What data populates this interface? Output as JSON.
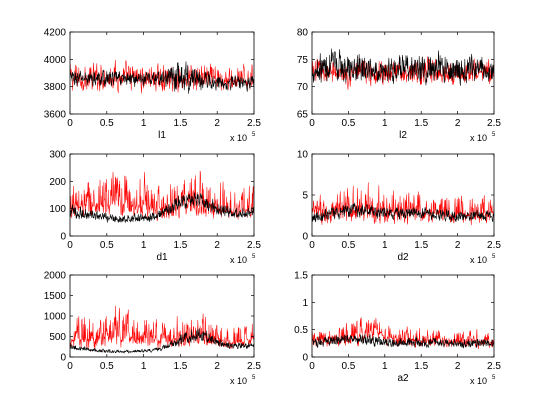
{
  "chart_data": [
    {
      "type": "line",
      "xlabel": "l1",
      "xscale_label": "x 10",
      "xscale_exp": "5",
      "xlim": [
        0,
        2.5
      ],
      "ylim": [
        3600,
        4200
      ],
      "xticks": [
        "0",
        "0.5",
        "1",
        "1.5",
        "2",
        "2.5"
      ],
      "yticks": [
        "3600",
        "3800",
        "4000",
        "4200"
      ],
      "grid": false,
      "series": [
        {
          "color": "#ff0000",
          "style": "trace",
          "x": [
            0,
            0.25,
            0.5,
            0.75,
            1.0,
            1.25,
            1.5,
            1.75,
            2.0,
            2.25,
            2.5
          ],
          "center": [
            3860,
            3850,
            3870,
            3860,
            3850,
            3850,
            3850,
            3860,
            3850,
            3840,
            3860
          ],
          "min": [
            3720,
            3730,
            3740,
            3730,
            3730,
            3740,
            3730,
            3720,
            3730,
            3740,
            3740
          ],
          "max": [
            4030,
            4000,
            4060,
            4030,
            4000,
            3990,
            4040,
            4020,
            4000,
            3990,
            4000
          ]
        },
        {
          "color": "#000000",
          "style": "trace",
          "x": [
            0,
            0.25,
            0.5,
            0.75,
            1.0,
            1.25,
            1.5,
            1.75,
            2.0,
            2.25,
            2.5
          ],
          "center": [
            3860,
            3860,
            3860,
            3860,
            3860,
            3860,
            3860,
            3860,
            3830,
            3830,
            3840
          ],
          "min": [
            3780,
            3780,
            3790,
            3790,
            3780,
            3790,
            3700,
            3750,
            3760,
            3760,
            3750
          ],
          "max": [
            3940,
            3940,
            3930,
            3930,
            3930,
            3930,
            4060,
            3960,
            3910,
            3900,
            3910
          ]
        }
      ]
    },
    {
      "type": "line",
      "xlabel": "l2",
      "xscale_label": "x 10",
      "xscale_exp": "5",
      "xlim": [
        0,
        2.5
      ],
      "ylim": [
        65,
        80
      ],
      "xticks": [
        "0",
        "0.5",
        "1",
        "1.5",
        "2",
        "2.5"
      ],
      "yticks": [
        "65",
        "70",
        "75",
        "80"
      ],
      "grid": false,
      "series": [
        {
          "color": "#ff0000",
          "style": "trace",
          "x": [
            0,
            0.25,
            0.5,
            0.75,
            1.0,
            1.25,
            1.5,
            1.75,
            2.0,
            2.25,
            2.5
          ],
          "center": [
            72.5,
            72.5,
            72.5,
            72.5,
            72.5,
            72.5,
            72.5,
            72.5,
            72.5,
            72.5,
            72.5
          ],
          "min": [
            70.0,
            70.0,
            69.0,
            69.5,
            69.5,
            70.0,
            69.5,
            70.0,
            70.0,
            70.0,
            70.0
          ],
          "max": [
            76.0,
            76.0,
            76.5,
            76.0,
            76.0,
            76.0,
            76.0,
            76.0,
            75.5,
            76.0,
            75.5
          ]
        },
        {
          "color": "#000000",
          "style": "trace",
          "x": [
            0,
            0.25,
            0.5,
            0.75,
            1.0,
            1.25,
            1.5,
            1.75,
            2.0,
            2.25,
            2.5
          ],
          "center": [
            73.0,
            73.5,
            73.0,
            73.0,
            73.0,
            73.0,
            73.0,
            73.0,
            73.0,
            73.0,
            73.0
          ],
          "min": [
            70.0,
            70.0,
            70.0,
            70.0,
            70.0,
            70.0,
            70.0,
            70.0,
            70.0,
            70.0,
            70.0
          ],
          "max": [
            77.0,
            78.0,
            77.0,
            76.5,
            77.0,
            76.5,
            77.0,
            77.0,
            76.5,
            76.5,
            76.0
          ]
        }
      ]
    },
    {
      "type": "line",
      "xlabel": "d1",
      "xscale_label": "x 10",
      "xscale_exp": "5",
      "xlim": [
        0,
        2.5
      ],
      "ylim": [
        0,
        300
      ],
      "xticks": [
        "0",
        "0.5",
        "1",
        "1.5",
        "2",
        "2.5"
      ],
      "yticks": [
        "0",
        "100",
        "200",
        "300"
      ],
      "grid": false,
      "series": [
        {
          "color": "#ff0000",
          "style": "trace",
          "x": [
            0,
            0.25,
            0.5,
            0.75,
            1.0,
            1.25,
            1.5,
            1.75,
            2.0,
            2.25,
            2.5
          ],
          "center": [
            100,
            110,
            115,
            120,
            110,
            100,
            120,
            110,
            100,
            90,
            100
          ],
          "min": [
            50,
            50,
            45,
            45,
            50,
            45,
            50,
            55,
            50,
            50,
            55
          ],
          "max": [
            230,
            260,
            290,
            280,
            260,
            220,
            240,
            280,
            240,
            200,
            220
          ]
        },
        {
          "color": "#000000",
          "style": "trace",
          "x": [
            0,
            0.25,
            0.5,
            0.75,
            1.0,
            1.25,
            1.5,
            1.75,
            2.0,
            2.25,
            2.5
          ],
          "center": [
            90,
            75,
            65,
            60,
            65,
            80,
            125,
            140,
            100,
            80,
            85
          ],
          "min": [
            60,
            50,
            45,
            45,
            45,
            55,
            85,
            95,
            70,
            60,
            65
          ],
          "max": [
            130,
            105,
            90,
            85,
            90,
            110,
            165,
            180,
            140,
            110,
            115
          ]
        }
      ]
    },
    {
      "type": "line",
      "xlabel": "d2",
      "xscale_label": "x 10",
      "xscale_exp": "5",
      "xlim": [
        0,
        2.5
      ],
      "ylim": [
        0,
        10
      ],
      "xticks": [
        "0",
        "0.5",
        "1",
        "1.5",
        "2",
        "2.5"
      ],
      "yticks": [
        "0",
        "5",
        "10"
      ],
      "grid": false,
      "series": [
        {
          "color": "#ff0000",
          "style": "trace",
          "x": [
            0,
            0.25,
            0.5,
            0.75,
            1.0,
            1.25,
            1.5,
            1.75,
            2.0,
            2.25,
            2.5
          ],
          "center": [
            2.8,
            2.9,
            3.2,
            3.3,
            3.0,
            2.9,
            2.9,
            2.8,
            2.7,
            2.6,
            2.6
          ],
          "min": [
            1.0,
            1.0,
            1.0,
            1.0,
            1.0,
            1.0,
            1.0,
            1.0,
            1.0,
            1.0,
            1.0
          ],
          "max": [
            5.5,
            6.0,
            7.0,
            8.0,
            6.5,
            6.0,
            6.5,
            6.5,
            6.0,
            5.5,
            5.5
          ]
        },
        {
          "color": "#000000",
          "style": "trace",
          "x": [
            0,
            0.25,
            0.5,
            0.75,
            1.0,
            1.25,
            1.5,
            1.75,
            2.0,
            2.25,
            2.5
          ],
          "center": [
            2.5,
            2.6,
            3.2,
            3.0,
            2.8,
            2.7,
            2.8,
            2.6,
            2.5,
            2.4,
            2.4
          ],
          "min": [
            1.5,
            1.6,
            2.0,
            2.0,
            1.8,
            1.7,
            1.8,
            1.6,
            1.6,
            1.6,
            1.6
          ],
          "max": [
            3.5,
            3.6,
            4.3,
            4.0,
            3.8,
            3.7,
            3.8,
            3.6,
            3.5,
            3.4,
            3.3
          ]
        }
      ]
    },
    {
      "type": "line",
      "xlabel": "",
      "xscale_label": "x 10",
      "xscale_exp": "5",
      "xlim": [
        0,
        2.5
      ],
      "ylim": [
        0,
        2000
      ],
      "xticks": [
        "0",
        "0.5",
        "1",
        "1.5",
        "2",
        "2.5"
      ],
      "yticks": [
        "0",
        "500",
        "1000",
        "1500",
        "2000"
      ],
      "grid": false,
      "series": [
        {
          "color": "#ff0000",
          "style": "trace",
          "x": [
            0,
            0.25,
            0.5,
            0.75,
            1.0,
            1.25,
            1.5,
            1.75,
            2.0,
            2.25,
            2.5
          ],
          "center": [
            420,
            450,
            500,
            520,
            470,
            420,
            470,
            500,
            420,
            380,
            420
          ],
          "min": [
            150,
            150,
            140,
            140,
            150,
            140,
            160,
            160,
            150,
            140,
            150
          ],
          "max": [
            1200,
            1250,
            1550,
            1450,
            1200,
            1050,
            1250,
            1350,
            1100,
            950,
            1000
          ]
        },
        {
          "color": "#000000",
          "style": "trace",
          "x": [
            0,
            0.25,
            0.5,
            0.75,
            1.0,
            1.25,
            1.5,
            1.75,
            2.0,
            2.25,
            2.5
          ],
          "center": [
            250,
            180,
            140,
            120,
            140,
            200,
            400,
            560,
            350,
            250,
            300
          ],
          "min": [
            170,
            120,
            90,
            80,
            90,
            130,
            250,
            350,
            220,
            160,
            200
          ],
          "max": [
            350,
            250,
            200,
            180,
            200,
            280,
            600,
            900,
            500,
            360,
            420
          ]
        }
      ]
    },
    {
      "type": "line",
      "xlabel": "a2",
      "xscale_label": "x 10",
      "xscale_exp": "5",
      "xlim": [
        0,
        2.5
      ],
      "ylim": [
        0,
        1.5
      ],
      "xticks": [
        "0",
        "0.5",
        "1",
        "1.5",
        "2",
        "2.5"
      ],
      "yticks": [
        "0",
        "0.5",
        "1",
        "1.5"
      ],
      "grid": false,
      "series": [
        {
          "color": "#ff0000",
          "style": "trace",
          "x": [
            0,
            0.25,
            0.5,
            0.75,
            0.9,
            1.0,
            1.25,
            1.5,
            1.75,
            2.0,
            2.25,
            2.5
          ],
          "center": [
            0.28,
            0.3,
            0.33,
            0.4,
            0.55,
            0.35,
            0.3,
            0.3,
            0.3,
            0.28,
            0.26,
            0.27
          ],
          "min": [
            0.12,
            0.13,
            0.14,
            0.15,
            0.2,
            0.15,
            0.13,
            0.13,
            0.13,
            0.12,
            0.12,
            0.12
          ],
          "max": [
            0.55,
            0.6,
            0.8,
            0.9,
            1.0,
            0.7,
            0.6,
            0.65,
            0.6,
            0.55,
            0.55,
            0.55
          ]
        },
        {
          "color": "#000000",
          "style": "trace",
          "x": [
            0,
            0.25,
            0.5,
            0.75,
            1.0,
            1.25,
            1.5,
            1.75,
            2.0,
            2.25,
            2.5
          ],
          "center": [
            0.25,
            0.28,
            0.33,
            0.3,
            0.27,
            0.26,
            0.27,
            0.26,
            0.25,
            0.24,
            0.24
          ],
          "min": [
            0.15,
            0.17,
            0.2,
            0.18,
            0.16,
            0.16,
            0.16,
            0.16,
            0.15,
            0.15,
            0.15
          ],
          "max": [
            0.38,
            0.42,
            0.48,
            0.45,
            0.4,
            0.38,
            0.4,
            0.38,
            0.37,
            0.36,
            0.36
          ]
        }
      ]
    }
  ]
}
